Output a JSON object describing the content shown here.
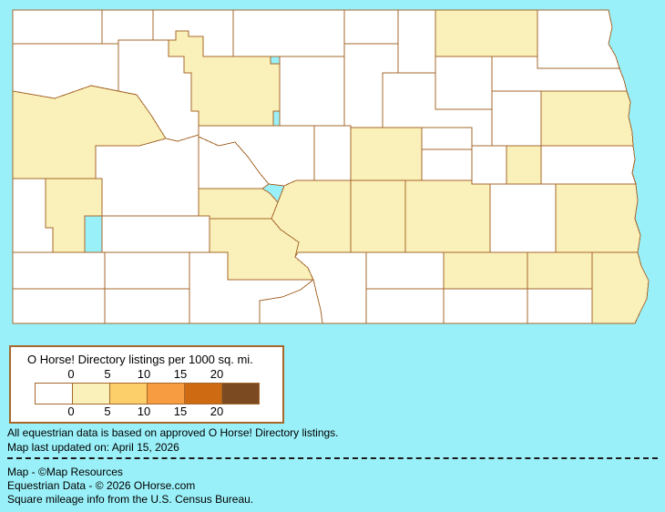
{
  "map": {
    "region_name": "North Dakota counties",
    "background_color": "#9AF0F8",
    "county_border_color": "#A5682D",
    "fill_colors": {
      "0": "#FFFFFF",
      "0-5": "#FAF0B9"
    },
    "counties": [
      {
        "name": "Divide",
        "listings_per_1000_sqmi": "0"
      },
      {
        "name": "Burke",
        "listings_per_1000_sqmi": "0"
      },
      {
        "name": "Renville",
        "listings_per_1000_sqmi": "0"
      },
      {
        "name": "Bottineau",
        "listings_per_1000_sqmi": "0"
      },
      {
        "name": "Rolette",
        "listings_per_1000_sqmi": "0"
      },
      {
        "name": "Towner",
        "listings_per_1000_sqmi": "0"
      },
      {
        "name": "Cavalier",
        "listings_per_1000_sqmi": "0-5"
      },
      {
        "name": "Pembina",
        "listings_per_1000_sqmi": "0"
      },
      {
        "name": "Williams",
        "listings_per_1000_sqmi": "0"
      },
      {
        "name": "Mountrail",
        "listings_per_1000_sqmi": "0"
      },
      {
        "name": "Ward",
        "listings_per_1000_sqmi": "0-5"
      },
      {
        "name": "McHenry",
        "listings_per_1000_sqmi": "0"
      },
      {
        "name": "Pierce",
        "listings_per_1000_sqmi": "0"
      },
      {
        "name": "Benson",
        "listings_per_1000_sqmi": "0"
      },
      {
        "name": "Ramsey",
        "listings_per_1000_sqmi": "0"
      },
      {
        "name": "Walsh",
        "listings_per_1000_sqmi": "0"
      },
      {
        "name": "Nelson",
        "listings_per_1000_sqmi": "0"
      },
      {
        "name": "Grand Forks",
        "listings_per_1000_sqmi": "0-5"
      },
      {
        "name": "McKenzie",
        "listings_per_1000_sqmi": "0-5"
      },
      {
        "name": "Dunn",
        "listings_per_1000_sqmi": "0"
      },
      {
        "name": "Mercer",
        "listings_per_1000_sqmi": "0"
      },
      {
        "name": "McLean",
        "listings_per_1000_sqmi": "0"
      },
      {
        "name": "Sheridan",
        "listings_per_1000_sqmi": "0"
      },
      {
        "name": "Wells",
        "listings_per_1000_sqmi": "0-5"
      },
      {
        "name": "Eddy",
        "listings_per_1000_sqmi": "0"
      },
      {
        "name": "Foster",
        "listings_per_1000_sqmi": "0"
      },
      {
        "name": "Griggs",
        "listings_per_1000_sqmi": "0"
      },
      {
        "name": "Steele",
        "listings_per_1000_sqmi": "0-5"
      },
      {
        "name": "Traill",
        "listings_per_1000_sqmi": "0"
      },
      {
        "name": "Golden Valley",
        "listings_per_1000_sqmi": "0"
      },
      {
        "name": "Billings",
        "listings_per_1000_sqmi": "0-5"
      },
      {
        "name": "Stark",
        "listings_per_1000_sqmi": "0"
      },
      {
        "name": "Oliver",
        "listings_per_1000_sqmi": "0-5"
      },
      {
        "name": "Morton",
        "listings_per_1000_sqmi": "0-5"
      },
      {
        "name": "Burleigh",
        "listings_per_1000_sqmi": "0-5"
      },
      {
        "name": "Kidder",
        "listings_per_1000_sqmi": "0-5"
      },
      {
        "name": "Stutsman",
        "listings_per_1000_sqmi": "0-5"
      },
      {
        "name": "Barnes",
        "listings_per_1000_sqmi": "0"
      },
      {
        "name": "Cass",
        "listings_per_1000_sqmi": "0-5"
      },
      {
        "name": "Slope",
        "listings_per_1000_sqmi": "0"
      },
      {
        "name": "Hettinger",
        "listings_per_1000_sqmi": "0"
      },
      {
        "name": "Grant",
        "listings_per_1000_sqmi": "0"
      },
      {
        "name": "Sioux",
        "listings_per_1000_sqmi": "0"
      },
      {
        "name": "Emmons",
        "listings_per_1000_sqmi": "0"
      },
      {
        "name": "Logan",
        "listings_per_1000_sqmi": "0"
      },
      {
        "name": "LaMoure",
        "listings_per_1000_sqmi": "0-5"
      },
      {
        "name": "Ransom",
        "listings_per_1000_sqmi": "0-5"
      },
      {
        "name": "Richland",
        "listings_per_1000_sqmi": "0-5"
      },
      {
        "name": "Bowman",
        "listings_per_1000_sqmi": "0"
      },
      {
        "name": "Adams",
        "listings_per_1000_sqmi": "0"
      },
      {
        "name": "McIntosh",
        "listings_per_1000_sqmi": "0"
      },
      {
        "name": "Dickey",
        "listings_per_1000_sqmi": "0"
      },
      {
        "name": "Sargent",
        "listings_per_1000_sqmi": "0"
      }
    ]
  },
  "legend": {
    "title": "O Horse! Directory listings per 1000 sq. mi.",
    "tick_labels_top": [
      "0",
      "5",
      "10",
      "15",
      "20"
    ],
    "tick_labels_bottom": [
      "0",
      "5",
      "10",
      "15",
      "20"
    ],
    "swatch_colors": [
      "#FFFFFF",
      "#FAF0B9",
      "#FCCF6B",
      "#F89C41",
      "#CE6A12",
      "#7C4A20"
    ],
    "border_color": "#A5682D"
  },
  "notes": {
    "line1": "All equestrian data is based on approved O Horse! Directory listings.",
    "line2": "Map last updated on: April 15, 2026"
  },
  "credits": {
    "line1": "Map - ©Map Resources",
    "line2": "Equestrian Data - © 2026 OHorse.com",
    "line3": "Square mileage info from the U.S. Census Bureau."
  }
}
